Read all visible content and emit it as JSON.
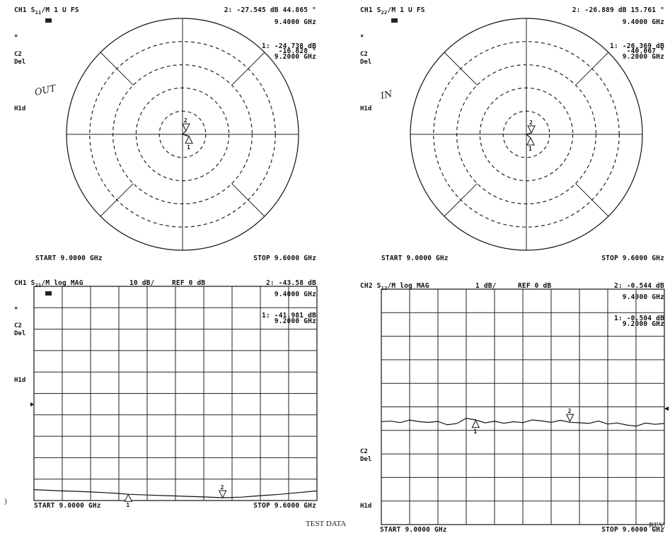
{
  "footer": {
    "left_fragment": ")",
    "center": "TEST DATA",
    "right_fragment": "REV."
  },
  "chart_data": [
    {
      "type": "smith",
      "header": {
        "channel": "CH1",
        "param": "S",
        "sub": "11",
        "rest": "/M 1 U FS"
      },
      "icon": "memory-icon",
      "left_labels": [
        "*",
        "C2",
        "Del",
        "H1d"
      ],
      "handwritten": "OUT",
      "marker_readouts": [
        {
          "id": "2:",
          "line1": "-27.545 dB   44.865 °",
          "line2": "9.4000 GHz"
        },
        {
          "id": "1:",
          "line1": "-24.738 dB",
          "line1b": "-16.828 °",
          "line2": "9.2000 GHz"
        }
      ],
      "start": "START  9.0000 GHz",
      "stop": "STOP  9.6000 GHz",
      "points": [
        {
          "label": "1",
          "mag_db": -24.738,
          "angle_deg": -16.828,
          "freq_ghz": 9.2
        },
        {
          "label": "2",
          "mag_db": -27.545,
          "angle_deg": 44.865,
          "freq_ghz": 9.4
        }
      ]
    },
    {
      "type": "smith",
      "header": {
        "channel": "CH1",
        "param": "S",
        "sub": "22",
        "rest": "/M 1 U FS"
      },
      "icon": "memory-icon",
      "left_labels": [
        "*",
        "C2",
        "Del",
        "H1d"
      ],
      "handwritten": "IN",
      "marker_readouts": [
        {
          "id": "2:",
          "line1": "-26.889 dB   15.761 °",
          "line2": "9.4000 GHz"
        },
        {
          "id": "1:",
          "line1": "-26.369 dB",
          "line1b": "-40.067 °",
          "line2": "9.2000 GHz"
        }
      ],
      "start": "START  9.0000 GHz",
      "stop": "STOP  9.6000 GHz",
      "points": [
        {
          "label": "1",
          "mag_db": -26.369,
          "angle_deg": -40.067,
          "freq_ghz": 9.2
        },
        {
          "label": "2",
          "mag_db": -26.889,
          "angle_deg": 15.761,
          "freq_ghz": 9.4
        }
      ]
    },
    {
      "type": "line",
      "header": {
        "channel": "CH1",
        "param": "S",
        "sub": "21",
        "rest": "/M log MAG",
        "scale": "10 dB/",
        "ref": "REF 0 dB"
      },
      "icon": "memory-icon",
      "left_labels": [
        "*",
        "C2",
        "Del",
        "H1d"
      ],
      "marker_readouts": [
        {
          "id": "2:",
          "line1": "-43.58  dB",
          "line2": "9.4000 GHz"
        },
        {
          "id": "1:",
          "line1": "-41.981 dB",
          "line2": "9.2000 GHz"
        }
      ],
      "start": "START  9.0000 GHz",
      "stop": "STOP  9.6000 GHz",
      "xlim": [
        9.0,
        9.6
      ],
      "ylim": [
        -80,
        0
      ],
      "divisions": 8,
      "ref_db": 0,
      "x": [
        9.0,
        9.03,
        9.06,
        9.09,
        9.12,
        9.15,
        9.18,
        9.2,
        9.24,
        9.28,
        9.32,
        9.36,
        9.4,
        9.44,
        9.48,
        9.52,
        9.56,
        9.6
      ],
      "series": [
        {
          "values": [
            -39.8,
            -40.1,
            -40.4,
            -40.6,
            -40.9,
            -41.2,
            -41.6,
            -41.981,
            -42.3,
            -42.6,
            -42.9,
            -43.2,
            -43.58,
            -43.3,
            -42.6,
            -42.0,
            -41.2,
            -40.4
          ]
        }
      ],
      "markers": [
        {
          "label": "1",
          "x": 9.2,
          "y": -41.981
        },
        {
          "label": "2",
          "x": 9.4,
          "y": -43.58
        }
      ]
    },
    {
      "type": "line",
      "header": {
        "channel": "CH2",
        "param": "S",
        "sub": "12",
        "rest": "/M log MAG",
        "scale": "1 dB/",
        "ref": "REF 0 dB"
      },
      "icon": "",
      "left_labels": [
        "C2",
        "Del",
        "H1d"
      ],
      "marker_readouts": [
        {
          "id": "2:",
          "line1": "-0.544  dB",
          "line2": "9.4000 GHz"
        },
        {
          "id": "1:",
          "line1": "-0.504  dB",
          "line2": "9.2000 GHz"
        }
      ],
      "start": "START  9.0000 GHz",
      "stop": "STOP  9.6000 GHz",
      "xlim": [
        9.0,
        9.6
      ],
      "ylim": [
        -4,
        4
      ],
      "divisions": 8,
      "ref_db": 0,
      "x": [
        9.0,
        9.02,
        9.04,
        9.06,
        9.08,
        9.1,
        9.12,
        9.14,
        9.16,
        9.18,
        9.2,
        9.22,
        9.24,
        9.26,
        9.28,
        9.3,
        9.32,
        9.34,
        9.36,
        9.38,
        9.4,
        9.42,
        9.44,
        9.46,
        9.48,
        9.5,
        9.52,
        9.54,
        9.56,
        9.58,
        9.6
      ],
      "series": [
        {
          "values": [
            -0.55,
            -0.5,
            -0.56,
            -0.48,
            -0.58,
            -0.62,
            -0.55,
            -0.66,
            -0.6,
            -0.4,
            -0.504,
            -0.64,
            -0.55,
            -0.6,
            -0.52,
            -0.58,
            -0.5,
            -0.56,
            -0.6,
            -0.48,
            -0.544,
            -0.58,
            -0.64,
            -0.56,
            -0.68,
            -0.6,
            -0.66,
            -0.72,
            -0.62,
            -0.7,
            -0.66
          ]
        }
      ],
      "markers": [
        {
          "label": "1",
          "x": 9.2,
          "y": -0.504
        },
        {
          "label": "2",
          "x": 9.4,
          "y": -0.544
        }
      ]
    }
  ]
}
